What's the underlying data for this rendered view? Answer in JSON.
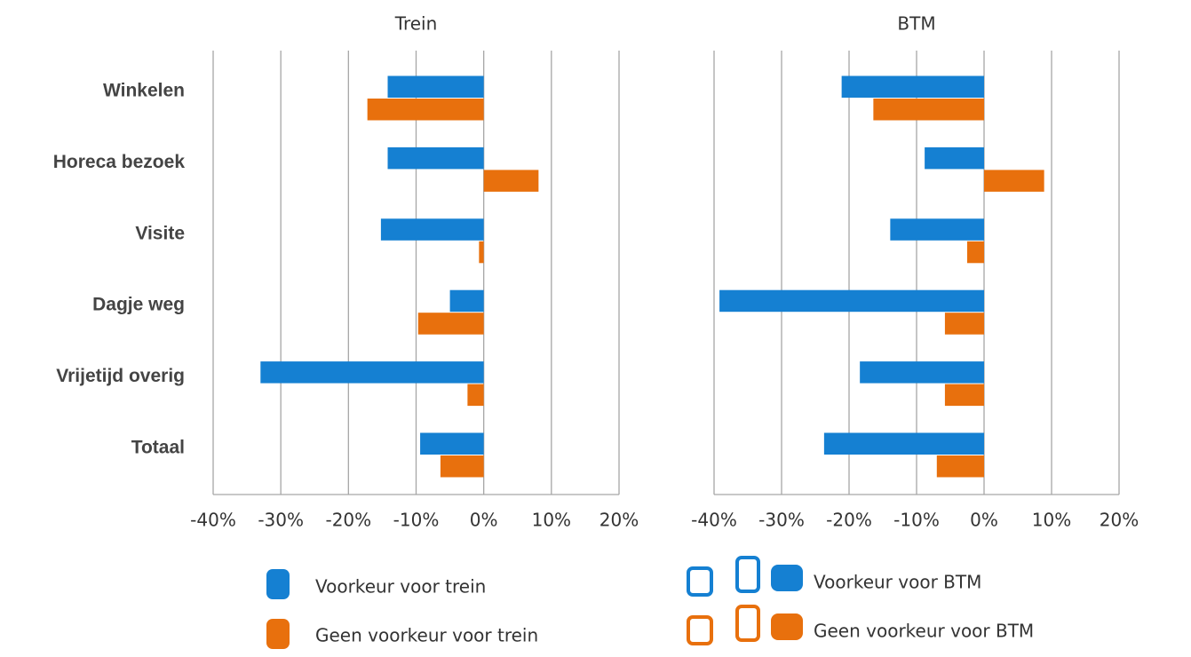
{
  "chart_data": [
    {
      "type": "hbar",
      "title": "Trein",
      "categories": [
        "Winkelen",
        "Horeca bezoek",
        "Visite",
        "Dagje weg",
        "Vrijetijd overig",
        "Totaal"
      ],
      "series": [
        {
          "name": "Voorkeur voor trein",
          "color": "#1580d2",
          "values": [
            -14.2,
            -14.2,
            -15.2,
            -5.0,
            -33.0,
            -9.4
          ]
        },
        {
          "name": "Geen voorkeur voor trein",
          "color": "#e8700d",
          "values": [
            -17.2,
            8.1,
            -0.7,
            -9.7,
            -2.4,
            -6.4
          ]
        }
      ],
      "xlim": [
        -40,
        20
      ],
      "xticks": [
        {
          "value": -40,
          "label": "-40%"
        },
        {
          "value": -30,
          "label": "-30%"
        },
        {
          "value": -20,
          "label": "-20%"
        },
        {
          "value": -10,
          "label": "-10%"
        },
        {
          "value": 0,
          "label": "0%"
        },
        {
          "value": 10,
          "label": "10%"
        },
        {
          "value": 20,
          "label": "20%"
        }
      ],
      "grid": true
    },
    {
      "type": "hbar",
      "title": "BTM",
      "categories": [
        "Winkelen",
        "Horeca bezoek",
        "Visite",
        "Dagje weg",
        "Vrijetijd overig",
        "Totaal"
      ],
      "series": [
        {
          "name": "Voorkeur voor BTM",
          "color": "#1580d2",
          "values": [
            -21.1,
            -8.8,
            -13.9,
            -39.2,
            -18.4,
            -23.7
          ]
        },
        {
          "name": "Geen voorkeur voor BTM",
          "color": "#e8700d",
          "values": [
            -16.4,
            8.9,
            -2.5,
            -5.8,
            -5.8,
            -7.0
          ]
        }
      ],
      "xlim": [
        -40,
        20
      ],
      "xticks": [
        {
          "value": -40,
          "label": "-40%"
        },
        {
          "value": -30,
          "label": "-30%"
        },
        {
          "value": -20,
          "label": "-20%"
        },
        {
          "value": -10,
          "label": "-10%"
        },
        {
          "value": 0,
          "label": "0%"
        },
        {
          "value": 10,
          "label": "10%"
        },
        {
          "value": 20,
          "label": "20%"
        }
      ],
      "grid": true
    }
  ]
}
